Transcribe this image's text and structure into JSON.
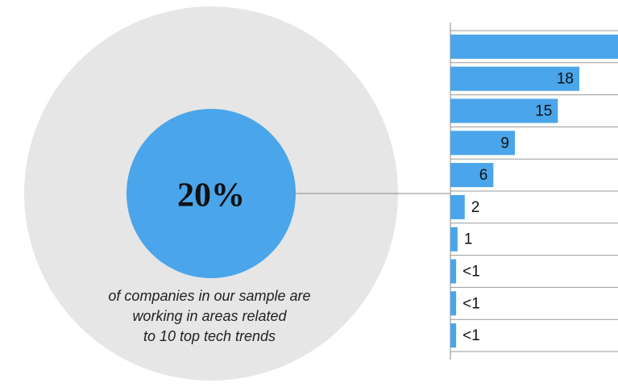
{
  "callout": {
    "value_label": "20%",
    "caption": [
      "of companies in our sample are",
      "working in areas related",
      "to 10 top tech trends"
    ]
  },
  "chart_data": {
    "type": "bar",
    "orientation": "horizontal",
    "color": "#4aa5ea",
    "values": [
      24,
      18,
      15,
      9,
      6,
      2,
      1,
      0.8,
      0.8,
      0.8
    ],
    "value_labels": [
      null,
      "18",
      "15",
      "9",
      "6",
      "2",
      "1",
      "<1",
      "<1",
      "<1"
    ],
    "xlim": [
      0,
      23.4
    ]
  }
}
